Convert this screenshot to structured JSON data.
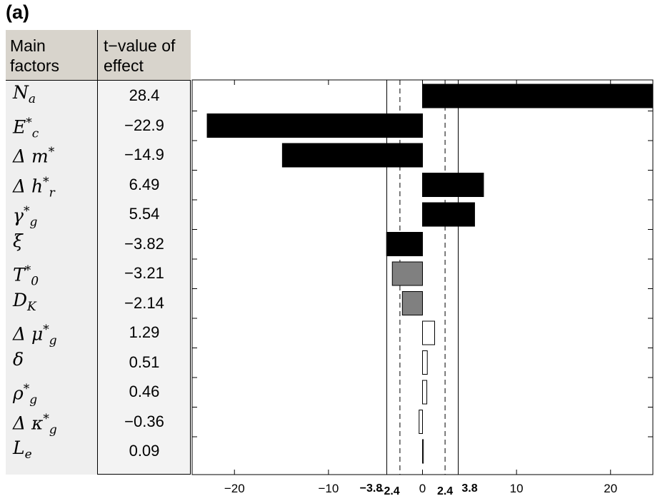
{
  "panel_label": "(a)",
  "table": {
    "header_factor": "Main factors",
    "header_tvalue": "t−value of effect"
  },
  "factors": [
    {
      "base": "N",
      "sup": "",
      "sub": "a",
      "tvalue": "28.4",
      "tnum": 28.4,
      "fill": "#000000"
    },
    {
      "base": "E",
      "sup": "*",
      "sub": "c",
      "tvalue": "−22.9",
      "tnum": -22.9,
      "fill": "#000000"
    },
    {
      "base": "Δ m",
      "sup": "*",
      "sub": "",
      "tvalue": "−14.9",
      "tnum": -14.9,
      "fill": "#000000"
    },
    {
      "base": "Δ h",
      "sup": "*",
      "sub": "r",
      "tvalue": "6.49",
      "tnum": 6.49,
      "fill": "#000000"
    },
    {
      "base": "γ",
      "sup": "*",
      "sub": "g",
      "tvalue": "5.54",
      "tnum": 5.54,
      "fill": "#000000"
    },
    {
      "base": "ξ",
      "sup": "",
      "sub": "",
      "tvalue": "−3.82",
      "tnum": -3.82,
      "fill": "#000000"
    },
    {
      "base": "T",
      "sup": "*",
      "sub": "0",
      "tvalue": "−3.21",
      "tnum": -3.21,
      "fill": "#808080"
    },
    {
      "base": "D",
      "sup": "",
      "sub": "K",
      "tvalue": "−2.14",
      "tnum": -2.14,
      "fill": "#808080"
    },
    {
      "base": "Δ μ",
      "sup": "*",
      "sub": "g",
      "tvalue": "1.29",
      "tnum": 1.29,
      "fill": "#ffffff"
    },
    {
      "base": "δ",
      "sup": "",
      "sub": "",
      "tvalue": "0.51",
      "tnum": 0.51,
      "fill": "#ffffff"
    },
    {
      "base": "ρ",
      "sup": "*",
      "sub": "g",
      "tvalue": "0.46",
      "tnum": 0.46,
      "fill": "#ffffff"
    },
    {
      "base": "Δ κ",
      "sup": "*",
      "sub": "g",
      "tvalue": "−0.36",
      "tnum": -0.36,
      "fill": "#ffffff"
    },
    {
      "base": "L",
      "sup": "",
      "sub": "e",
      "tvalue": "0.09",
      "tnum": 0.09,
      "fill": "#ffffff"
    }
  ],
  "chart_data": {
    "type": "bar",
    "orientation": "horizontal",
    "title": "",
    "xlabel": "",
    "ylabel": "",
    "xlim": [
      -24.5,
      24.5
    ],
    "categories": [
      "N_a",
      "E*_c",
      "Δ m*",
      "Δ h*_r",
      "γ*_g",
      "ξ",
      "T*_0",
      "D_K",
      "Δ μ*_g",
      "δ",
      "ρ*_g",
      "Δ κ*_g",
      "L_e"
    ],
    "values": [
      28.4,
      -22.9,
      -14.9,
      6.49,
      5.54,
      -3.82,
      -3.21,
      -2.14,
      1.29,
      0.51,
      0.46,
      -0.36,
      0.09
    ],
    "x_ticks": [
      -20,
      -10,
      0,
      10,
      20
    ],
    "x_tick_labels": [
      "−20",
      "−10",
      "0",
      "10",
      "20"
    ],
    "thresholds": [
      {
        "value": -3.8,
        "label": "−3.8",
        "style": "solid"
      },
      {
        "value": -2.4,
        "label": "−2.4",
        "style": "dashed"
      },
      {
        "value": 2.4,
        "label": "2.4",
        "style": "dashed"
      },
      {
        "value": 3.8,
        "label": "3.8",
        "style": "solid"
      }
    ],
    "colors": {
      "significant": "#000000",
      "marginal": "#808080",
      "insignificant": "#ffffff"
    },
    "grid": false,
    "legend": "none"
  }
}
